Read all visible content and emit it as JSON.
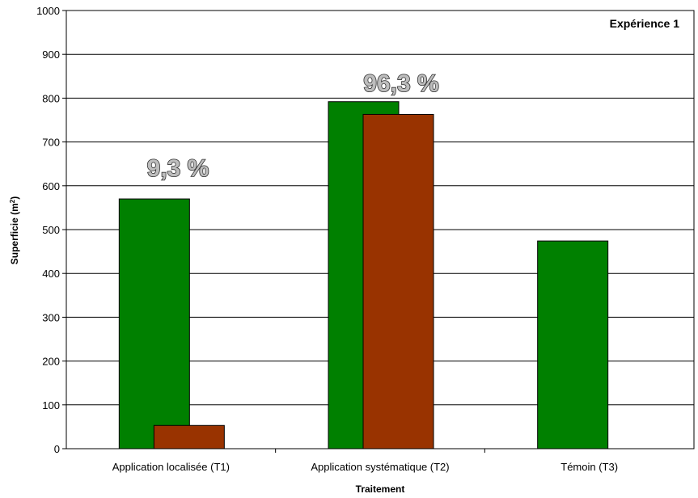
{
  "chart_data": {
    "type": "bar",
    "title": "Expérience 1",
    "xlabel": "Traitement",
    "ylabel_main": "Superficie (m",
    "ylabel_sup": "2",
    "ylabel_end": ")",
    "ylim": [
      0,
      1000
    ],
    "yticks": [
      "0",
      "100",
      "200",
      "300",
      "400",
      "500",
      "600",
      "700",
      "800",
      "900",
      "1000"
    ],
    "grid": true,
    "categories": [
      "Application localisée (T1)",
      "Application systématique (T2)",
      "Témoin (T3)"
    ],
    "series": [
      {
        "values": [
          570,
          792,
          474
        ],
        "color": "#008000"
      },
      {
        "values": [
          53,
          763,
          null
        ],
        "color": "#993300"
      }
    ],
    "annotations": [
      "9,3 %",
      "96,3 %"
    ]
  }
}
